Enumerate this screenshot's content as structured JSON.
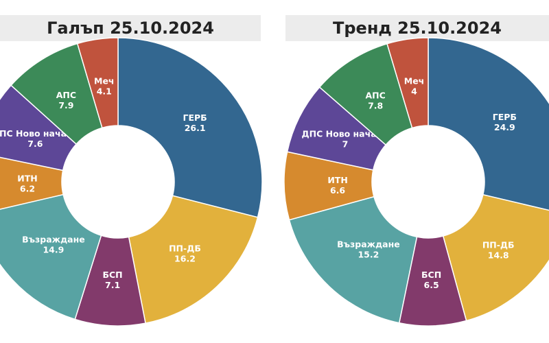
{
  "chart_data": [
    {
      "type": "pie",
      "title": "Галъп 25.10.2024",
      "categories": [
        "ГЕРБ",
        "ПП-ДБ",
        "БСП",
        "Възраждане",
        "ИТН",
        "ДПС Ново начало",
        "АПС",
        "Меч"
      ],
      "values": [
        26.1,
        16.2,
        7.1,
        14.9,
        6.2,
        7.6,
        7.9,
        4.1
      ],
      "labels": [
        "26.1",
        "16.2",
        "7.1",
        "14.9",
        "6.2",
        "7.6",
        "7.9",
        "4.1"
      ]
    },
    {
      "type": "pie",
      "title": "Тренд 25.10.2024",
      "categories": [
        "ГЕРБ",
        "ПП-ДБ",
        "БСП",
        "Възраждане",
        "ИТН",
        "ДПС Ново начало",
        "АПС",
        "Меч"
      ],
      "values": [
        24.9,
        14.8,
        6.5,
        15.2,
        6.6,
        7,
        7.8,
        4
      ],
      "labels": [
        "24.9",
        "14.8",
        "6.5",
        "15.2",
        "6.6",
        "7",
        "7.8",
        "4"
      ]
    }
  ],
  "colors": {
    "ГЕРБ": "#336790",
    "ПП-ДБ": "#e2b13c",
    "БСП": "#823a6b",
    "Възраждане": "#58a3a3",
    "ИТН": "#d68a2e",
    "ДПС Ново начало": "#5d4797",
    "АПС": "#3c8a58",
    "Меч": "#c0533d"
  }
}
